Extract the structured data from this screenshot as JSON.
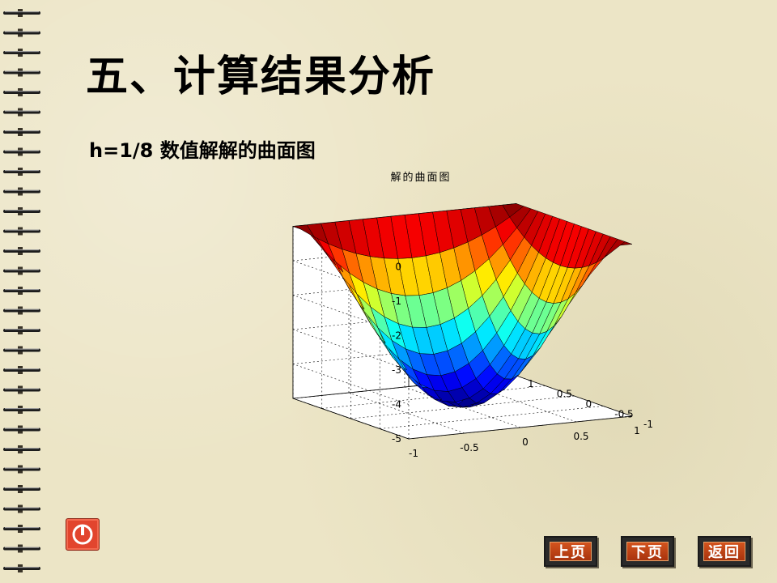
{
  "slide": {
    "title": "五、计算结果分析",
    "subtitle": "h=1/8 数值解解的曲面图"
  },
  "nav": {
    "prev_label": "上页",
    "next_label": "下页",
    "back_label": "返回",
    "power_icon": "power-icon"
  },
  "colors": {
    "background": "#ece5c6",
    "button_face": "#c2441a",
    "power_button": "#e2452e"
  },
  "chart_data": {
    "type": "surface",
    "title": "解的曲面图",
    "xlim": [
      -1,
      1
    ],
    "ylim": [
      -1,
      1
    ],
    "zlim": [
      -5,
      0
    ],
    "x_ticks": [
      "-1",
      "-0.5",
      "0",
      "0.5",
      "1"
    ],
    "y_ticks": [
      "-1",
      "-0.5",
      "0",
      "0.5",
      "1"
    ],
    "z_ticks": [
      "0",
      "-1",
      "-2",
      "-3",
      "-4",
      "-5"
    ],
    "grid": true,
    "colormap": "jet",
    "grid_step": 0.125,
    "z_min_value": -5.0,
    "z_boundary_value": 0
  }
}
